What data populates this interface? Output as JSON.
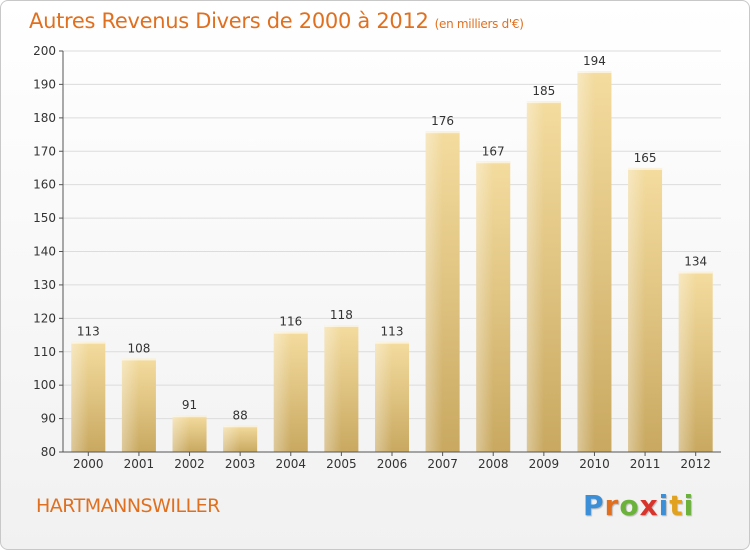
{
  "chart_data": {
    "type": "bar",
    "title": "Autres Revenus Divers de 2000 à 2012",
    "subtitle": "(en milliers d'€)",
    "categories": [
      "2000",
      "2001",
      "2002",
      "2003",
      "2004",
      "2005",
      "2006",
      "2007",
      "2008",
      "2009",
      "2010",
      "2011",
      "2012"
    ],
    "values": [
      113,
      108,
      91,
      88,
      116,
      118,
      113,
      176,
      167,
      185,
      194,
      165,
      134
    ],
    "ylim": [
      80,
      200
    ],
    "yticks": [
      80,
      90,
      100,
      110,
      120,
      130,
      140,
      150,
      160,
      170,
      180,
      190,
      200
    ],
    "grid": true,
    "bar_color": "#e5c57e"
  },
  "footer": {
    "commune": "HARTMANNSWILLER",
    "logo_letters": [
      {
        "ch": "P",
        "color": "#3a8fd8"
      },
      {
        "ch": "r",
        "color": "#e0701f"
      },
      {
        "ch": "o",
        "color": "#6ab23a"
      },
      {
        "ch": "x",
        "color": "#d8342c"
      },
      {
        "ch": "i",
        "color": "#3a8fd8"
      },
      {
        "ch": "t",
        "color": "#e0a21f"
      },
      {
        "ch": "i",
        "color": "#6ab23a"
      }
    ]
  }
}
